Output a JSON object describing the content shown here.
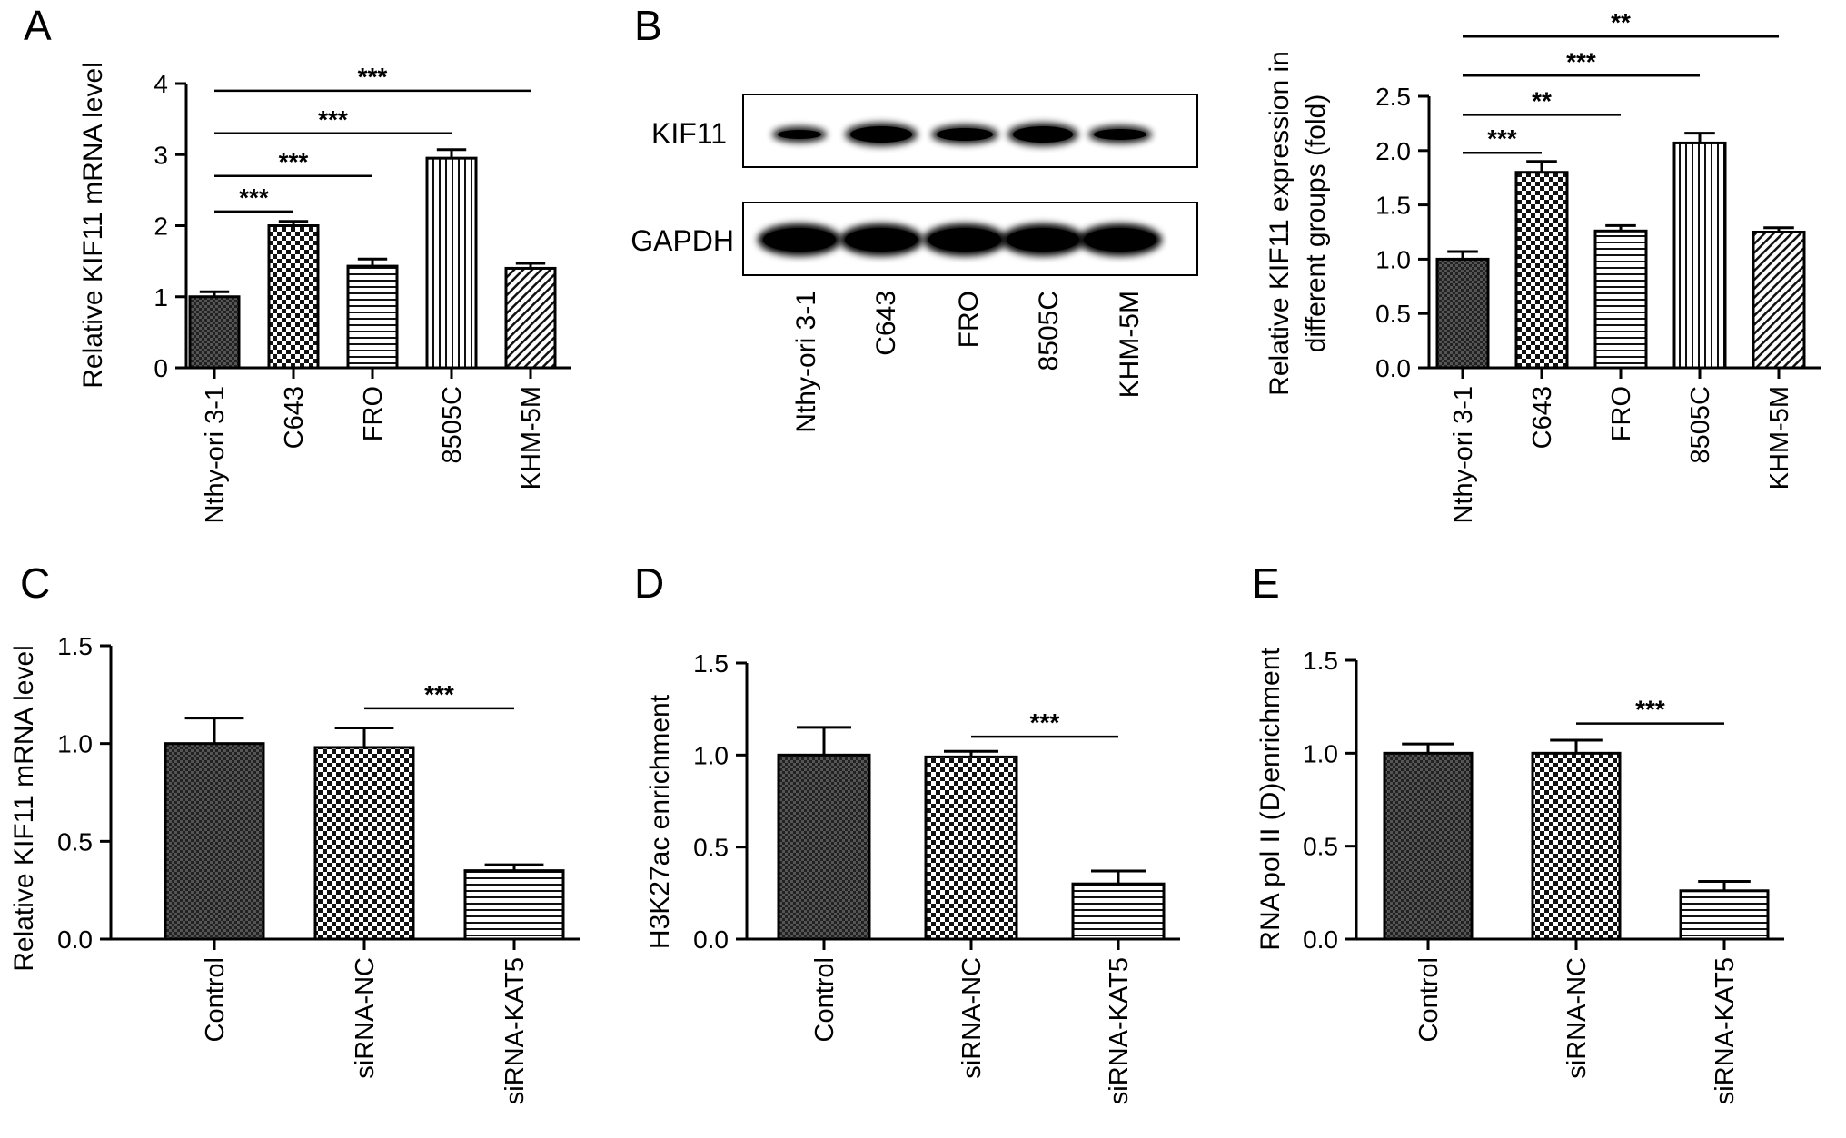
{
  "panel_labels": [
    "A",
    "B",
    "C",
    "D",
    "E"
  ],
  "blot": {
    "rows": [
      "KIF11",
      "GAPDH"
    ],
    "lanes": [
      "Nthy-ori 3-1",
      "C643",
      "FRO",
      "8505C",
      "KHM-5M"
    ]
  },
  "chart_data": [
    {
      "panel": "A",
      "type": "bar",
      "ylabel": "Relative KIF11 mRNA level",
      "ylim": [
        0,
        4
      ],
      "yticks": [
        "0",
        "1",
        "2",
        "3",
        "4"
      ],
      "categories": [
        "Nthy-ori 3-1",
        "C643",
        "FRO",
        "8505C",
        "KHM-5M"
      ],
      "values": [
        1.0,
        2.0,
        1.43,
        2.95,
        1.4
      ],
      "errors": [
        0.07,
        0.06,
        0.1,
        0.12,
        0.07
      ],
      "patterns": [
        "pat-fine",
        "pat-check",
        "pat-hlines",
        "pat-vlines",
        "pat-diag"
      ],
      "significance": [
        {
          "from": 0,
          "to": 1,
          "label": "***",
          "y": 2.2
        },
        {
          "from": 0,
          "to": 2,
          "label": "***",
          "y": 2.7
        },
        {
          "from": 0,
          "to": 3,
          "label": "***",
          "y": 3.3
        },
        {
          "from": 0,
          "to": 4,
          "label": "***",
          "y": 3.9
        }
      ]
    },
    {
      "panel": "B",
      "type": "bar",
      "ylabel": "Relative KIF11 expression in different groups (fold)",
      "ylabel_lines": [
        "Relative KIF11 expression in",
        "different groups (fold)"
      ],
      "ylim": [
        0,
        2.5
      ],
      "yticks": [
        "0.0",
        "0.5",
        "1.0",
        "1.5",
        "2.0",
        "2.5"
      ],
      "categories": [
        "Nthy-ori 3-1",
        "C643",
        "FRO",
        "8505C",
        "KHM-5M"
      ],
      "values": [
        1.0,
        1.8,
        1.26,
        2.07,
        1.25
      ],
      "errors": [
        0.07,
        0.1,
        0.05,
        0.09,
        0.04
      ],
      "patterns": [
        "pat-fine",
        "pat-check",
        "pat-hlines",
        "pat-vlines",
        "pat-diag"
      ],
      "significance": [
        {
          "from": 0,
          "to": 1,
          "label": "***",
          "y": 1.98
        },
        {
          "from": 0,
          "to": 2,
          "label": "**",
          "y": 2.33
        },
        {
          "from": 0,
          "to": 3,
          "label": "***",
          "y": 2.69
        },
        {
          "from": 0,
          "to": 4,
          "label": "**",
          "y": 3.05
        }
      ]
    },
    {
      "panel": "C",
      "type": "bar",
      "ylabel": "Relative KIF11 mRNA level",
      "ylim": [
        0,
        1.5
      ],
      "yticks": [
        "0.0",
        "0.5",
        "1.0",
        "1.5"
      ],
      "categories": [
        "Control",
        "siRNA-NC",
        "siRNA-KAT5"
      ],
      "values": [
        1.0,
        0.98,
        0.35
      ],
      "errors": [
        0.13,
        0.1,
        0.03
      ],
      "patterns": [
        "pat-fine",
        "pat-check",
        "pat-hlines"
      ],
      "significance": [
        {
          "from": 1,
          "to": 2,
          "label": "***",
          "y": 1.18
        }
      ]
    },
    {
      "panel": "D",
      "type": "bar",
      "ylabel": "H3K27ac enrichment",
      "ylim": [
        0,
        1.5
      ],
      "yticks": [
        "0.0",
        "0.5",
        "1.0",
        "1.5"
      ],
      "categories": [
        "Control",
        "siRNA-NC",
        "siRNA-KAT5"
      ],
      "values": [
        1.0,
        0.99,
        0.3
      ],
      "errors": [
        0.15,
        0.03,
        0.07
      ],
      "patterns": [
        "pat-fine",
        "pat-check",
        "pat-hlines"
      ],
      "significance": [
        {
          "from": 1,
          "to": 2,
          "label": "***",
          "y": 1.1
        }
      ]
    },
    {
      "panel": "E",
      "type": "bar",
      "ylabel": "RNA pol II (D)enrichment",
      "ylim": [
        0,
        1.5
      ],
      "yticks": [
        "0.0",
        "0.5",
        "1.0",
        "1.5"
      ],
      "categories": [
        "Control",
        "siRNA-NC",
        "siRNA-KAT5"
      ],
      "values": [
        1.0,
        1.0,
        0.26
      ],
      "errors": [
        0.05,
        0.07,
        0.05
      ],
      "patterns": [
        "pat-fine",
        "pat-check",
        "pat-hlines"
      ],
      "significance": [
        {
          "from": 1,
          "to": 2,
          "label": "***",
          "y": 1.16
        }
      ]
    }
  ]
}
